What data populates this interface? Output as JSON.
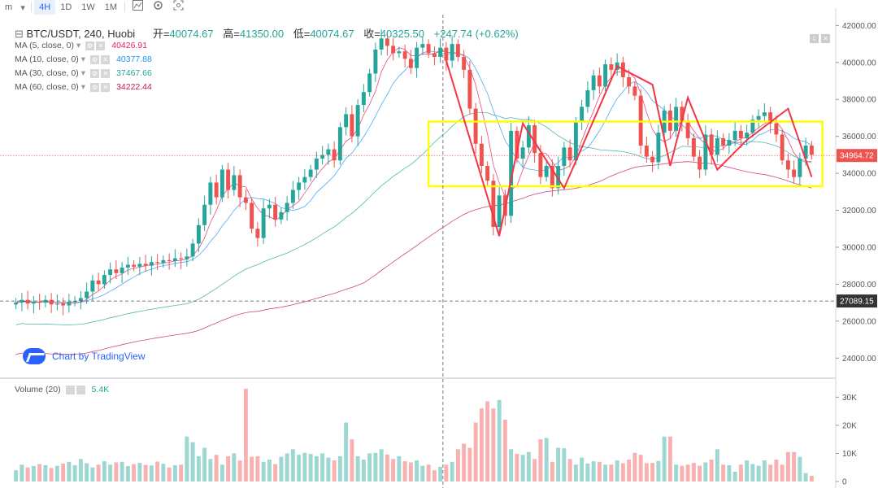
{
  "toolbar": {
    "items": [
      "m",
      "4H",
      "1D",
      "1W",
      "1M"
    ],
    "selected": "4H",
    "icons": [
      "bar-style-icon",
      "indicators-icon",
      "screenshot-icon"
    ]
  },
  "header": {
    "symbol": "BTC/USDT, 240, Huobi",
    "open_label": "开=",
    "open": "40074.67",
    "high_label": "高=",
    "high": "41350.00",
    "low_label": "低=",
    "low": "40074.67",
    "close_label": "收=",
    "close": "40325.50",
    "change": "+247.74 (+0.62%)"
  },
  "indicators": [
    {
      "label": "MA (5, close, 0)",
      "value": "40426.91",
      "color": "#e91e63"
    },
    {
      "label": "MA (10, close, 0)",
      "value": "40377.88",
      "color": "#2196f3"
    },
    {
      "label": "MA (30, close, 0)",
      "value": "37467.66",
      "color": "#26a69a"
    },
    {
      "label": "MA (60, close, 0)",
      "value": "34222.44",
      "color": "#c2185b"
    }
  ],
  "volume": {
    "label": "Volume (20)",
    "value": "5.4K"
  },
  "watermark": "Chart by TradingView",
  "price_labels": {
    "last": "34964.72",
    "crosshair": "27089.15"
  },
  "colors": {
    "up": "#26a69a",
    "down": "#ef5350",
    "box": "#ffff00",
    "wave": "#f23645",
    "ma5": "#e91e63",
    "ma10": "#2196f3",
    "ma30": "#26a69a",
    "ma60": "#c2185b",
    "last_price_bg": "#ef5350",
    "crosshair_bg": "#333333"
  },
  "chart_data": {
    "type": "candlestick",
    "ylim": [
      23000,
      42500
    ],
    "yticks": [
      "42000.00",
      "40000.00",
      "38000.00",
      "36000.00",
      "34000.00",
      "32000.00",
      "30000.00",
      "28000.00",
      "26000.00",
      "24000.00"
    ],
    "vol_ticks": [
      "30K",
      "20K",
      "10K",
      "0"
    ],
    "volume_ylim": [
      0,
      33000
    ],
    "closes": [
      27000,
      27150,
      26950,
      27050,
      27000,
      27150,
      26900,
      26950,
      26850,
      27050,
      27100,
      27250,
      27600,
      28200,
      28000,
      28500,
      28800,
      28600,
      28900,
      29050,
      28950,
      29100,
      29000,
      29200,
      29150,
      29300,
      29250,
      29400,
      29350,
      29500,
      30200,
      31200,
      32300,
      33500,
      32700,
      34200,
      33100,
      33900,
      32700,
      32400,
      31000,
      30500,
      32100,
      32300,
      31500,
      31900,
      32400,
      33100,
      33500,
      33800,
      34200,
      34800,
      35000,
      35300,
      34700,
      36500,
      37200,
      36000,
      37700,
      38400,
      39400,
      40700,
      41300,
      40900,
      40500,
      40600,
      40200,
      39700,
      40800,
      41000,
      40500,
      40300,
      40800,
      40100,
      41000,
      40300,
      39600,
      37500,
      35600,
      34400,
      33600,
      31100,
      32800,
      31700,
      36300,
      34800,
      35400,
      36600,
      35100,
      33800,
      34400,
      33200,
      34400,
      35400,
      34700,
      36800,
      37600,
      38500,
      39300,
      38700,
      39900,
      39600,
      40000,
      39200,
      38700,
      38200,
      35500,
      34900,
      34600,
      36200,
      37400,
      36300,
      37600,
      36800,
      35900,
      34900,
      34200,
      36100,
      35000,
      35900,
      35500,
      35800,
      36300,
      35900,
      36200,
      36900,
      37100,
      37300,
      36700,
      36100,
      34700,
      34200,
      33800,
      34800,
      35500,
      35000
    ],
    "volumes": [
      4000,
      6000,
      5000,
      5500,
      6200,
      5800,
      4800,
      5600,
      6400,
      7000,
      5800,
      8000,
      6500,
      5000,
      6000,
      7200,
      6000,
      6800,
      7000,
      5500,
      6200,
      6600,
      5900,
      5700,
      7100,
      6300,
      5000,
      5800,
      6000,
      16000,
      14000,
      9000,
      12000,
      8000,
      9500,
      6000,
      9000,
      10000,
      7500,
      33000,
      8800,
      9000,
      7000,
      7800,
      6200,
      8800,
      10000,
      11500,
      9500,
      10200,
      9800,
      9000,
      10000,
      8500,
      7500,
      9000,
      21000,
      15000,
      9000,
      7800,
      10000,
      10200,
      11500,
      9600,
      8000,
      9000,
      7200,
      6800,
      7500,
      5600,
      6000,
      4000,
      5200,
      6000,
      7000,
      11500,
      13500,
      12000,
      21000,
      26000,
      28500,
      26000,
      29000,
      22000,
      11500,
      9800,
      9500,
      10500,
      8000,
      15000,
      15500,
      7000,
      12000,
      11800,
      8000,
      6000,
      8500,
      6400,
      7200,
      7000,
      6000,
      6000,
      7500,
      6500,
      7800,
      10200,
      9500,
      6500,
      6600,
      7300,
      16000,
      16000,
      6000,
      5600,
      6000,
      6600,
      5600,
      6800,
      7800,
      11500,
      6000,
      5800,
      3500,
      6000,
      7500,
      6200,
      5600,
      7500,
      6000,
      7800,
      6000,
      10500,
      10500,
      8800,
      3000,
      2000
    ]
  },
  "annotations": {
    "box": {
      "price_top": 36800,
      "price_bottom": 33300,
      "from_bar": 70,
      "to_bar": 136
    },
    "wave_points": [
      [
        73,
        40100
      ],
      [
        82,
        30600
      ],
      [
        86,
        36700
      ],
      [
        93,
        33200
      ],
      [
        102,
        39800
      ],
      [
        108,
        38800
      ],
      [
        111,
        34400
      ],
      [
        114,
        38100
      ],
      [
        119,
        34200
      ],
      [
        124,
        35800
      ],
      [
        131,
        37500
      ],
      [
        135,
        33800
      ]
    ]
  }
}
